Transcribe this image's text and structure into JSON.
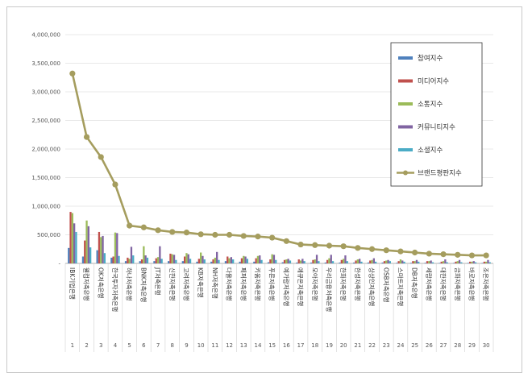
{
  "chart_data": {
    "type": "bar",
    "title": "",
    "xlabel": "",
    "ylabel": "",
    "ylim": [
      0,
      4000000
    ],
    "yticks": [
      "-",
      "500,000",
      "1,000,000",
      "1,500,000",
      "2,000,000",
      "2,500,000",
      "3,000,000",
      "3,500,000",
      "4,000,000"
    ],
    "grid": true,
    "legend_position": "top-right",
    "categories": [
      "IBK기업은행",
      "웰컴저축은행",
      "OK저축은행",
      "한국투자저축은행",
      "하나저축은행",
      "BNK저축은행",
      "JT저축은행",
      "신한저축은행",
      "고려저축은행",
      "KB저축은행",
      "NH저축은행",
      "다올저축은행",
      "페퍼저축은행",
      "키움저축은행",
      "푸른저축은행",
      "예가람저축은행",
      "애큐온저축은행",
      "모아저축은행",
      "우리금융저축은행",
      "한화저축은행",
      "한성저축은행",
      "상상인저축은행",
      "OSB저축은행",
      "스마트저축은행",
      "DB저축은행",
      "세람저축은행",
      "대한저축은행",
      "금화저축은행",
      "바로저축은행",
      "조은저축은행"
    ],
    "ranks": [
      "1",
      "2",
      "3",
      "4",
      "5",
      "6",
      "7",
      "8",
      "9",
      "10",
      "11",
      "12",
      "13",
      "14",
      "15",
      "16",
      "17",
      "18",
      "19",
      "20",
      "21",
      "22",
      "23",
      "24",
      "25",
      "26",
      "27",
      "28",
      "29",
      "30"
    ],
    "series": [
      {
        "name": "참여지수",
        "type": "bar",
        "color": "#4f81bd",
        "values": [
          270000,
          120000,
          230000,
          100000,
          40000,
          40000,
          40000,
          40000,
          40000,
          30000,
          30000,
          40000,
          30000,
          30000,
          20000,
          20000,
          15000,
          15000,
          15000,
          15000,
          15000,
          15000,
          15000,
          10000,
          10000,
          10000,
          8000,
          8000,
          8000,
          8000
        ]
      },
      {
        "name": "미디어지수",
        "type": "bar",
        "color": "#c0504d",
        "values": [
          900000,
          400000,
          550000,
          120000,
          100000,
          70000,
          90000,
          170000,
          120000,
          80000,
          70000,
          120000,
          90000,
          90000,
          70000,
          60000,
          70000,
          60000,
          60000,
          60000,
          50000,
          50000,
          40000,
          40000,
          40000,
          40000,
          30000,
          30000,
          30000,
          30000
        ]
      },
      {
        "name": "소통지수",
        "type": "bar",
        "color": "#9bbb59",
        "values": [
          880000,
          750000,
          460000,
          540000,
          80000,
          300000,
          110000,
          160000,
          180000,
          190000,
          100000,
          90000,
          130000,
          130000,
          160000,
          70000,
          50000,
          70000,
          90000,
          80000,
          70000,
          60000,
          50000,
          70000,
          40000,
          40000,
          40000,
          40000,
          30000,
          30000
        ]
      },
      {
        "name": "커뮤니티지수",
        "type": "bar",
        "color": "#8064a2",
        "values": [
          700000,
          650000,
          480000,
          530000,
          290000,
          140000,
          300000,
          150000,
          160000,
          130000,
          200000,
          110000,
          120000,
          140000,
          150000,
          80000,
          80000,
          150000,
          150000,
          140000,
          80000,
          90000,
          60000,
          50000,
          60000,
          50000,
          70000,
          60000,
          40000,
          60000
        ]
      },
      {
        "name": "소셜지수",
        "type": "bar",
        "color": "#4bacc6",
        "values": [
          550000,
          280000,
          180000,
          130000,
          140000,
          100000,
          80000,
          60000,
          80000,
          70000,
          60000,
          70000,
          80000,
          60000,
          60000,
          50000,
          40000,
          40000,
          40000,
          40000,
          30000,
          30000,
          40000,
          30000,
          30000,
          20000,
          20000,
          20000,
          20000,
          20000
        ]
      },
      {
        "name": "브랜드평판지수",
        "type": "line",
        "color": "#a59d5e",
        "values": [
          3320000,
          2210000,
          1860000,
          1380000,
          660000,
          630000,
          580000,
          550000,
          540000,
          510000,
          500000,
          500000,
          480000,
          470000,
          450000,
          390000,
          330000,
          320000,
          310000,
          300000,
          270000,
          250000,
          230000,
          210000,
          190000,
          170000,
          160000,
          150000,
          140000,
          140000
        ]
      }
    ]
  }
}
